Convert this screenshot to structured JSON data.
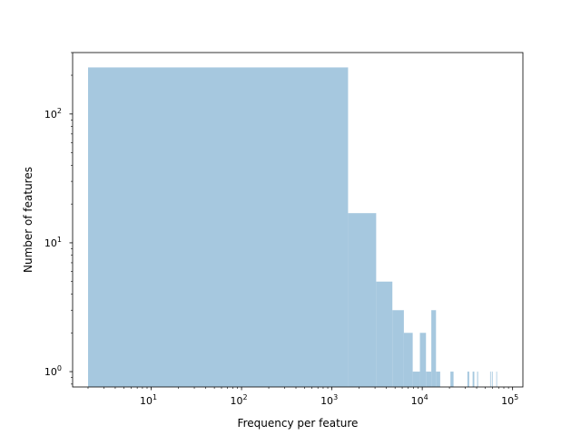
{
  "chart_data": {
    "type": "bar",
    "subtype": "histogram",
    "title": "",
    "xlabel": "Frequency per feature",
    "ylabel": "Number of features",
    "xscale": "log",
    "yscale": "log",
    "xlim": [
      1.35,
      130000
    ],
    "ylim": [
      0.76,
      300
    ],
    "x_ticks": [
      {
        "value": 10,
        "base": "10",
        "exp": "1"
      },
      {
        "value": 100,
        "base": "10",
        "exp": "2"
      },
      {
        "value": 1000,
        "base": "10",
        "exp": "3"
      },
      {
        "value": 10000,
        "base": "10",
        "exp": "4"
      },
      {
        "value": 100000,
        "base": "10",
        "exp": "5"
      }
    ],
    "y_ticks": [
      {
        "value": 1,
        "base": "10",
        "exp": "0"
      },
      {
        "value": 10,
        "base": "10",
        "exp": "1"
      },
      {
        "value": 100,
        "base": "10",
        "exp": "2"
      }
    ],
    "bar_color": "#a6c8df",
    "grid": false,
    "bins": [
      {
        "x0": 2,
        "x1": 1510,
        "count": 230
      },
      {
        "x0": 1510,
        "x1": 3090,
        "count": 17
      },
      {
        "x0": 3090,
        "x1": 4670,
        "count": 5
      },
      {
        "x0": 4670,
        "x1": 6260,
        "count": 3
      },
      {
        "x0": 6260,
        "x1": 7840,
        "count": 2
      },
      {
        "x0": 7840,
        "x1": 9420,
        "count": 1
      },
      {
        "x0": 9420,
        "x1": 11000,
        "count": 2
      },
      {
        "x0": 11000,
        "x1": 12600,
        "count": 1
      },
      {
        "x0": 12600,
        "x1": 14200,
        "count": 3
      },
      {
        "x0": 14200,
        "x1": 15800,
        "count": 1
      },
      {
        "x0": 20500,
        "x1": 22200,
        "count": 1
      },
      {
        "x0": 31600,
        "x1": 33100,
        "count": 1
      },
      {
        "x0": 36100,
        "x1": 37700,
        "count": 1
      },
      {
        "x0": 40500,
        "x1": 41500,
        "count": 1
      },
      {
        "x0": 56400,
        "x1": 57200,
        "count": 1
      },
      {
        "x0": 59000,
        "x1": 60200,
        "count": 1
      },
      {
        "x0": 66000,
        "x1": 67200,
        "count": 1
      }
    ]
  }
}
